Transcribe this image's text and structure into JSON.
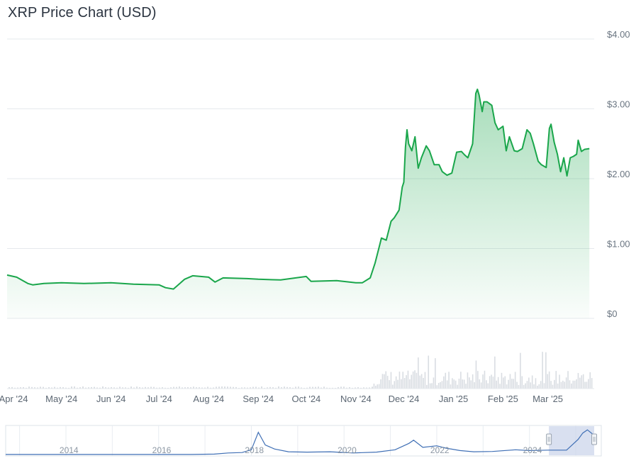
{
  "title": "XRP Price Chart (USD)",
  "colors": {
    "line": "#1aa64b",
    "fill_top": "#1aa64b",
    "volume": "#d9dde2",
    "navigator_line": "#3f6fb5",
    "navigator_mask": "#c9d3ea"
  },
  "chart_data": {
    "type": "area",
    "title": "XRP Price Chart (USD)",
    "xlabel": "",
    "ylabel": "",
    "ylim": [
      0,
      4
    ],
    "y_ticks": [
      "$0",
      "$1.00",
      "$2.00",
      "$3.00",
      "$4.00"
    ],
    "x_ticks": [
      "Apr '24",
      "May '24",
      "Jun '24",
      "Jul '24",
      "Aug '24",
      "Sep '24",
      "Oct '24",
      "Nov '24",
      "Dec '24",
      "Jan '25",
      "Feb '25",
      "Mar '25"
    ],
    "grid": true,
    "series": [
      {
        "values_x": [
          "2024-03-28",
          "2024-04-03",
          "2024-04-10",
          "2024-04-13",
          "2024-04-20",
          "2024-05-01",
          "2024-05-15",
          "2024-06-01",
          "2024-06-15",
          "2024-07-01",
          "2024-07-05",
          "2024-07-10",
          "2024-07-17",
          "2024-07-22",
          "2024-08-01",
          "2024-08-05",
          "2024-08-10",
          "2024-08-25",
          "2024-09-01",
          "2024-09-15",
          "2024-10-01",
          "2024-10-04",
          "2024-10-20",
          "2024-11-01",
          "2024-11-05",
          "2024-11-10",
          "2024-11-13",
          "2024-11-16",
          "2024-11-17",
          "2024-11-20",
          "2024-11-23",
          "2024-11-25",
          "2024-11-28",
          "2024-11-30",
          "2024-12-01",
          "2024-12-02",
          "2024-12-03",
          "2024-12-04",
          "2024-12-06",
          "2024-12-08",
          "2024-12-10",
          "2024-12-12",
          "2024-12-15",
          "2024-12-17",
          "2024-12-20",
          "2024-12-23",
          "2024-12-25",
          "2024-12-28",
          "2024-12-31",
          "2025-01-03",
          "2025-01-06",
          "2025-01-08",
          "2025-01-10",
          "2025-01-13",
          "2025-01-15",
          "2025-01-16",
          "2025-01-17",
          "2025-01-19",
          "2025-01-20",
          "2025-01-22",
          "2025-01-25",
          "2025-01-27",
          "2025-01-29",
          "2025-02-01",
          "2025-02-03",
          "2025-02-05",
          "2025-02-08",
          "2025-02-10",
          "2025-02-13",
          "2025-02-16",
          "2025-02-18",
          "2025-02-20",
          "2025-02-23",
          "2025-02-25",
          "2025-02-28",
          "2025-03-02",
          "2025-03-03",
          "2025-03-05",
          "2025-03-07",
          "2025-03-09",
          "2025-03-11",
          "2025-03-13",
          "2025-03-15",
          "2025-03-17",
          "2025-03-19",
          "2025-03-20",
          "2025-03-22",
          "2025-03-24",
          "2025-03-27"
        ],
        "values": [
          0.62,
          0.59,
          0.5,
          0.48,
          0.5,
          0.51,
          0.5,
          0.51,
          0.49,
          0.48,
          0.44,
          0.42,
          0.56,
          0.61,
          0.59,
          0.52,
          0.58,
          0.57,
          0.56,
          0.55,
          0.6,
          0.53,
          0.54,
          0.51,
          0.51,
          0.58,
          0.79,
          1.06,
          1.15,
          1.12,
          1.39,
          1.44,
          1.55,
          1.88,
          1.95,
          2.45,
          2.7,
          2.5,
          2.4,
          2.6,
          2.15,
          2.3,
          2.47,
          2.4,
          2.2,
          2.2,
          2.1,
          2.05,
          2.08,
          2.38,
          2.39,
          2.34,
          2.3,
          2.5,
          3.22,
          3.28,
          3.2,
          2.96,
          3.1,
          3.1,
          3.05,
          2.8,
          2.7,
          2.75,
          2.4,
          2.6,
          2.4,
          2.39,
          2.43,
          2.7,
          2.65,
          2.5,
          2.25,
          2.2,
          2.16,
          2.72,
          2.78,
          2.52,
          2.35,
          2.1,
          2.3,
          2.04,
          2.3,
          2.32,
          2.35,
          2.55,
          2.39,
          2.42,
          2.43
        ]
      }
    ],
    "volume_range": [
      "Nov '24",
      "Mar '25"
    ],
    "navigator": {
      "x_ticks": [
        "2014",
        "2016",
        "2018",
        "2020",
        "2022",
        "2024"
      ],
      "selected_range": [
        "Apr '24",
        "Mar '25"
      ],
      "values_x": [
        2012.5,
        2013.0,
        2013.5,
        2014.0,
        2014.5,
        2015.0,
        2015.5,
        2016.0,
        2016.5,
        2017.0,
        2017.3,
        2017.6,
        2017.8,
        2017.95,
        2018.1,
        2018.3,
        2018.6,
        2019.0,
        2019.5,
        2020.0,
        2020.5,
        2020.9,
        2021.2,
        2021.3,
        2021.5,
        2021.8,
        2022.0,
        2022.3,
        2022.6,
        2023.0,
        2023.5,
        2023.8,
        2024.2,
        2024.6,
        2024.85,
        2024.95,
        2025.05,
        2025.2
      ],
      "values": [
        0.005,
        0.01,
        0.01,
        0.01,
        0.01,
        0.01,
        0.01,
        0.01,
        0.01,
        0.05,
        0.2,
        0.25,
        0.6,
        2.8,
        1.2,
        0.7,
        0.35,
        0.3,
        0.35,
        0.2,
        0.3,
        0.6,
        1.4,
        1.8,
        0.9,
        1.1,
        0.8,
        0.5,
        0.35,
        0.38,
        0.6,
        0.5,
        0.55,
        0.55,
        1.9,
        2.7,
        3.1,
        2.4
      ]
    }
  }
}
